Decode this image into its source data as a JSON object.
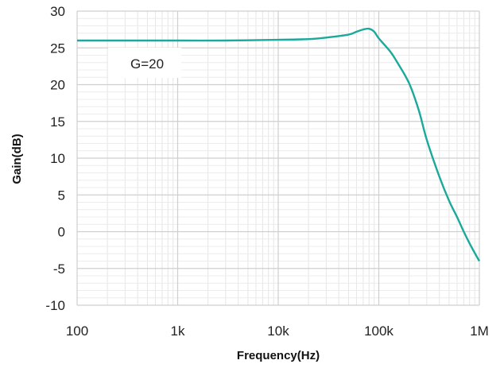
{
  "chart_data": {
    "type": "line",
    "title": "",
    "xlabel": "Frequency(Hz)",
    "ylabel": "Gain(dB)",
    "x_scale": "log",
    "xlim": [
      100,
      1000000
    ],
    "ylim": [
      -10,
      30
    ],
    "x_ticks": [
      {
        "value": 100,
        "label": "100"
      },
      {
        "value": 1000,
        "label": "1k"
      },
      {
        "value": 10000,
        "label": "10k"
      },
      {
        "value": 100000,
        "label": "100k"
      },
      {
        "value": 1000000,
        "label": "1M"
      }
    ],
    "y_ticks": [
      -10,
      -5,
      0,
      5,
      10,
      15,
      20,
      25,
      30
    ],
    "grid": true,
    "legend": "none",
    "annotation": "G=20",
    "series": [
      {
        "color": "#1aa99b",
        "x": [
          100,
          300,
          1000,
          3000,
          10000,
          20000,
          30000,
          50000,
          60000,
          70000,
          80000,
          90000,
          100000,
          130000,
          150000,
          200000,
          250000,
          300000,
          400000,
          500000,
          600000,
          700000,
          800000,
          900000,
          1000000
        ],
        "y": [
          26.0,
          26.0,
          26.0,
          26.0,
          26.1,
          26.2,
          26.4,
          26.8,
          27.2,
          27.5,
          27.6,
          27.2,
          26.3,
          24.5,
          23.2,
          20.2,
          16.5,
          12.5,
          7.5,
          4.2,
          2.0,
          0.0,
          -1.6,
          -2.9,
          -4.0
        ]
      }
    ]
  }
}
